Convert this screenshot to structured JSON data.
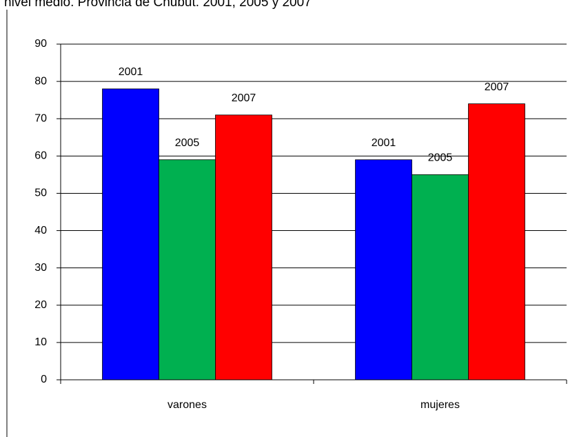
{
  "chart_data": {
    "type": "bar",
    "title": "nivel medio. Provincia de Chubut. 2001, 2005 y 2007",
    "categories": [
      "varones",
      "mujeres"
    ],
    "series": [
      {
        "name": "2001",
        "color": "#0000ff",
        "values": [
          78,
          59
        ]
      },
      {
        "name": "2005",
        "color": "#00b050",
        "values": [
          59,
          55
        ]
      },
      {
        "name": "2007",
        "color": "#ff0000",
        "values": [
          71,
          74
        ]
      }
    ],
    "ylim": [
      0,
      90
    ],
    "yticks": [
      0,
      10,
      20,
      30,
      40,
      50,
      60,
      70,
      80,
      90
    ],
    "grid": true
  }
}
